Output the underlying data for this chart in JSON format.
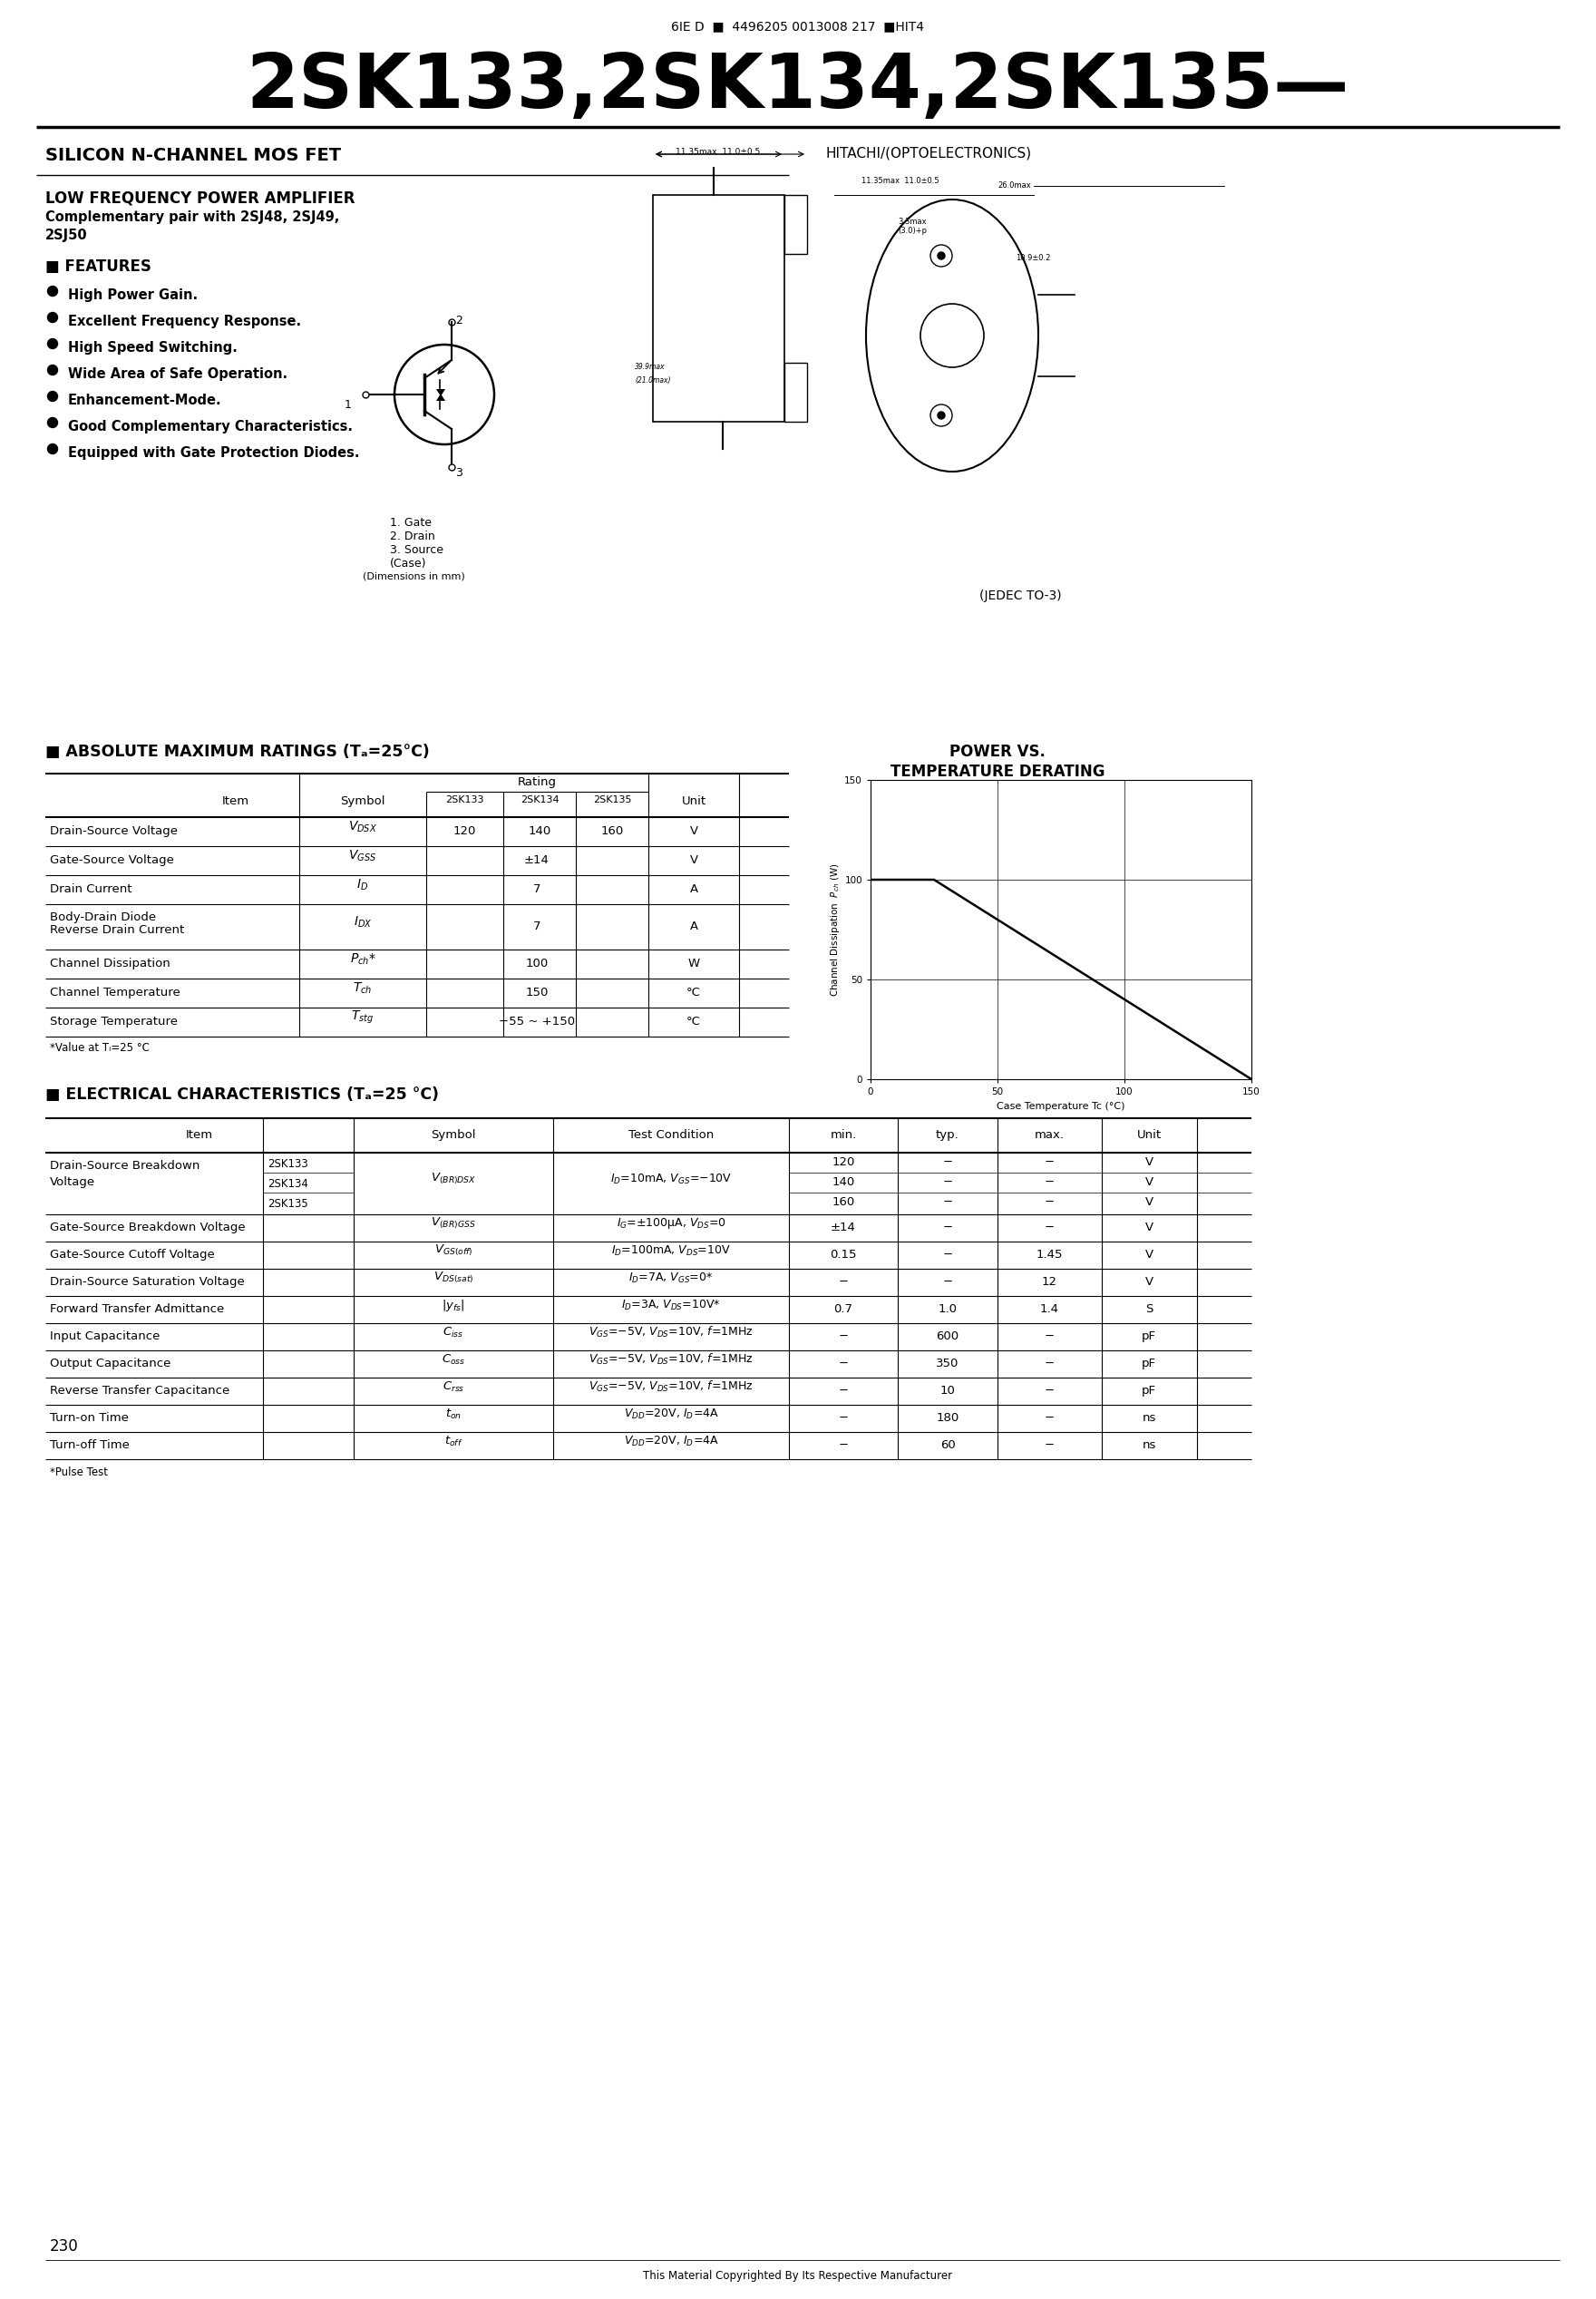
{
  "bg_color": "#ffffff",
  "barcode_line": "6IE D  ■  4496205 0013008 217  ■HIT4",
  "main_title": "2SK133,2SK134,2SK135—",
  "subtitle_left": "SILICON N-CHANNEL MOS FET",
  "subtitle_right": "HITACHI/(OPTOELECTRONICS)",
  "lowfreq_title": "LOW FREQUENCY POWER AMPLIFIER",
  "comp_pair": "Complementary pair with 2SJ48, 2SJ49,\n2SJ50",
  "features_title": "■ FEATURES",
  "features": [
    "High Power Gain.",
    "Excellent Frequency Response.",
    "High Speed Switching.",
    "Wide Area of Safe Operation.",
    "Enhancement-Mode.",
    "Good Complementary Characteristics.",
    "Equipped with Gate Protection Diodes."
  ],
  "pin_labels": "1. Gate\n2. Drain\n3. Source\n(Case)",
  "dim_note": "(Dimensions in mm)",
  "jedec": "(JEDEC TO-3)",
  "abs_max_title": "■ ABSOLUTE MAXIMUM RATINGS (Tₐ=25°C)",
  "power_vs_title1": "POWER VS.",
  "power_vs_title2": "TEMPERATURE DERATING",
  "power_xlabel": "Case Temperature Tc (°C)",
  "power_ylabel": "Channel Dissipation  P₀ₕ (W)",
  "abs_max_footnote": "*Value at Tᵢ=25 °C",
  "elec_title": "■ ELECTRICAL CHARACTERISTICS (Tₐ=25 °C)",
  "elec_footnote": "*Pulse Test",
  "page_number": "230",
  "copyright": "This Material Copyrighted By Its Respective Manufacturer"
}
